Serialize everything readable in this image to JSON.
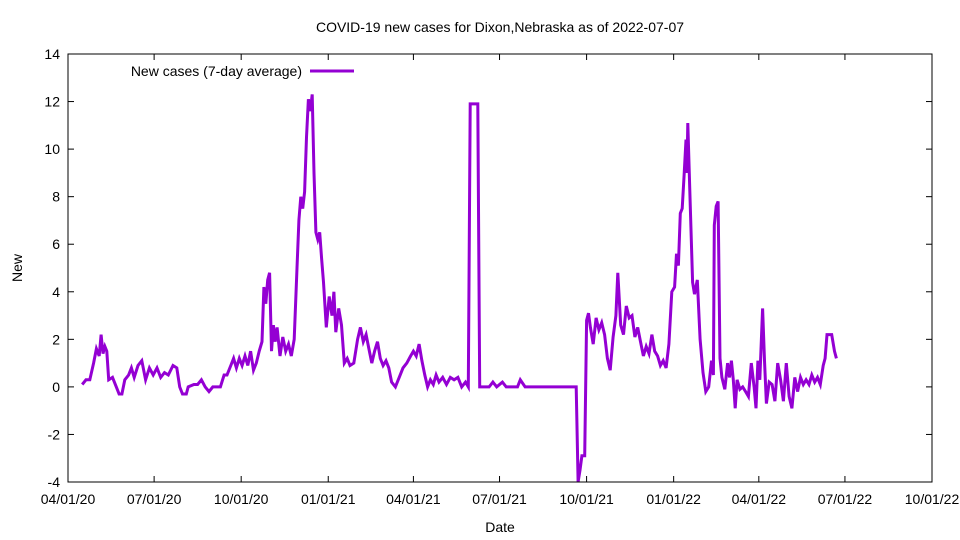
{
  "chart_data": {
    "type": "line",
    "title": "COVID-19 new cases for Dixon,Nebraska as of 2022-07-07",
    "xlabel": "Date",
    "ylabel": "New",
    "ylim": [
      -4,
      14
    ],
    "xlim": [
      "2020-04-01",
      "2022-10-01"
    ],
    "yticks": [
      -4,
      -2,
      0,
      2,
      4,
      6,
      8,
      10,
      12,
      14
    ],
    "xticks": [
      "04/01/20",
      "07/01/20",
      "10/01/20",
      "01/01/21",
      "04/01/21",
      "07/01/21",
      "10/01/21",
      "01/01/22",
      "04/01/22",
      "07/01/22",
      "10/01/22"
    ],
    "grid": false,
    "legend_position": "top-left",
    "series": [
      {
        "name": "New cases (7-day average)",
        "color": "#9400d3",
        "points": [
          [
            "2020-04-16",
            0.1
          ],
          [
            "2020-04-20",
            0.3
          ],
          [
            "2020-04-24",
            0.3
          ],
          [
            "2020-04-28",
            1.0
          ],
          [
            "2020-05-01",
            1.6
          ],
          [
            "2020-05-04",
            1.3
          ],
          [
            "2020-05-06",
            2.2
          ],
          [
            "2020-05-08",
            1.4
          ],
          [
            "2020-05-10",
            1.7
          ],
          [
            "2020-05-12",
            1.5
          ],
          [
            "2020-05-14",
            0.3
          ],
          [
            "2020-05-18",
            0.4
          ],
          [
            "2020-05-22",
            0.0
          ],
          [
            "2020-05-25",
            -0.3
          ],
          [
            "2020-05-28",
            -0.3
          ],
          [
            "2020-05-31",
            0.3
          ],
          [
            "2020-06-04",
            0.5
          ],
          [
            "2020-06-07",
            0.8
          ],
          [
            "2020-06-10",
            0.4
          ],
          [
            "2020-06-14",
            0.9
          ],
          [
            "2020-06-18",
            1.1
          ],
          [
            "2020-06-22",
            0.3
          ],
          [
            "2020-06-26",
            0.8
          ],
          [
            "2020-06-30",
            0.5
          ],
          [
            "2020-07-04",
            0.8
          ],
          [
            "2020-07-08",
            0.4
          ],
          [
            "2020-07-12",
            0.6
          ],
          [
            "2020-07-16",
            0.5
          ],
          [
            "2020-07-21",
            0.9
          ],
          [
            "2020-07-25",
            0.8
          ],
          [
            "2020-07-28",
            0.0
          ],
          [
            "2020-07-31",
            -0.3
          ],
          [
            "2020-08-04",
            -0.3
          ],
          [
            "2020-08-06",
            0.0
          ],
          [
            "2020-08-12",
            0.1
          ],
          [
            "2020-08-16",
            0.1
          ],
          [
            "2020-08-20",
            0.3
          ],
          [
            "2020-08-24",
            0.0
          ],
          [
            "2020-08-28",
            -0.2
          ],
          [
            "2020-09-01",
            0.0
          ],
          [
            "2020-09-05",
            0.0
          ],
          [
            "2020-09-09",
            0.0
          ],
          [
            "2020-09-13",
            0.5
          ],
          [
            "2020-09-16",
            0.5
          ],
          [
            "2020-09-20",
            0.9
          ],
          [
            "2020-09-23",
            1.2
          ],
          [
            "2020-09-26",
            0.8
          ],
          [
            "2020-09-29",
            1.2
          ],
          [
            "2020-10-02",
            0.9
          ],
          [
            "2020-10-05",
            1.3
          ],
          [
            "2020-10-08",
            0.9
          ],
          [
            "2020-10-11",
            1.5
          ],
          [
            "2020-10-14",
            0.7
          ],
          [
            "2020-10-17",
            1.0
          ],
          [
            "2020-10-20",
            1.5
          ],
          [
            "2020-10-23",
            1.9
          ],
          [
            "2020-10-25",
            4.2
          ],
          [
            "2020-10-27",
            3.5
          ],
          [
            "2020-10-29",
            4.5
          ],
          [
            "2020-10-31",
            4.8
          ],
          [
            "2020-11-02",
            1.5
          ],
          [
            "2020-11-04",
            2.6
          ],
          [
            "2020-11-06",
            1.9
          ],
          [
            "2020-11-08",
            2.5
          ],
          [
            "2020-11-11",
            1.3
          ],
          [
            "2020-11-14",
            2.1
          ],
          [
            "2020-11-17",
            1.5
          ],
          [
            "2020-11-20",
            1.8
          ],
          [
            "2020-11-23",
            1.3
          ],
          [
            "2020-11-26",
            2.0
          ],
          [
            "2020-11-29",
            5.0
          ],
          [
            "2020-12-01",
            7.0
          ],
          [
            "2020-12-03",
            8.0
          ],
          [
            "2020-12-05",
            7.5
          ],
          [
            "2020-12-07",
            8.2
          ],
          [
            "2020-12-09",
            10.5
          ],
          [
            "2020-12-11",
            12.1
          ],
          [
            "2020-12-13",
            11.6
          ],
          [
            "2020-12-15",
            12.3
          ],
          [
            "2020-12-17",
            9.0
          ],
          [
            "2020-12-19",
            6.5
          ],
          [
            "2020-12-21",
            6.2
          ],
          [
            "2020-12-23",
            6.5
          ],
          [
            "2020-12-25",
            5.4
          ],
          [
            "2020-12-27",
            4.4
          ],
          [
            "2020-12-30",
            2.5
          ],
          [
            "2021-01-02",
            3.8
          ],
          [
            "2021-01-05",
            3.0
          ],
          [
            "2021-01-07",
            4.0
          ],
          [
            "2021-01-09",
            2.3
          ],
          [
            "2021-01-12",
            3.3
          ],
          [
            "2021-01-15",
            2.6
          ],
          [
            "2021-01-18",
            1.0
          ],
          [
            "2021-01-21",
            1.2
          ],
          [
            "2021-01-24",
            0.9
          ],
          [
            "2021-01-28",
            1.0
          ],
          [
            "2021-02-01",
            2.0
          ],
          [
            "2021-02-04",
            2.5
          ],
          [
            "2021-02-07",
            1.9
          ],
          [
            "2021-02-10",
            2.2
          ],
          [
            "2021-02-13",
            1.6
          ],
          [
            "2021-02-16",
            1.0
          ],
          [
            "2021-02-19",
            1.5
          ],
          [
            "2021-02-22",
            1.9
          ],
          [
            "2021-02-25",
            1.2
          ],
          [
            "2021-02-28",
            0.9
          ],
          [
            "2021-03-03",
            1.1
          ],
          [
            "2021-03-06",
            0.8
          ],
          [
            "2021-03-09",
            0.2
          ],
          [
            "2021-03-13",
            0.0
          ],
          [
            "2021-03-17",
            0.4
          ],
          [
            "2021-03-21",
            0.8
          ],
          [
            "2021-03-25",
            1.0
          ],
          [
            "2021-03-29",
            1.3
          ],
          [
            "2021-04-01",
            1.5
          ],
          [
            "2021-04-04",
            1.3
          ],
          [
            "2021-04-07",
            1.8
          ],
          [
            "2021-04-10",
            1.1
          ],
          [
            "2021-04-13",
            0.5
          ],
          [
            "2021-04-16",
            0.0
          ],
          [
            "2021-04-19",
            0.3
          ],
          [
            "2021-04-22",
            0.1
          ],
          [
            "2021-04-25",
            0.5
          ],
          [
            "2021-04-28",
            0.2
          ],
          [
            "2021-05-02",
            0.4
          ],
          [
            "2021-05-06",
            0.1
          ],
          [
            "2021-05-10",
            0.4
          ],
          [
            "2021-05-14",
            0.3
          ],
          [
            "2021-05-18",
            0.4
          ],
          [
            "2021-05-22",
            0.0
          ],
          [
            "2021-05-26",
            0.2
          ],
          [
            "2021-05-29",
            0.0
          ],
          [
            "2021-05-31",
            11.9
          ],
          [
            "2021-06-08",
            11.9
          ],
          [
            "2021-06-10",
            0.0
          ],
          [
            "2021-06-20",
            0.0
          ],
          [
            "2021-06-24",
            0.2
          ],
          [
            "2021-06-28",
            0.0
          ],
          [
            "2021-07-04",
            0.2
          ],
          [
            "2021-07-08",
            0.0
          ],
          [
            "2021-07-20",
            0.0
          ],
          [
            "2021-07-23",
            0.3
          ],
          [
            "2021-07-28",
            0.0
          ],
          [
            "2021-09-20",
            0.0
          ],
          [
            "2021-09-22",
            -4.0
          ],
          [
            "2021-09-24",
            -3.5
          ],
          [
            "2021-09-26",
            -2.9
          ],
          [
            "2021-09-29",
            -2.9
          ],
          [
            "2021-10-01",
            2.8
          ],
          [
            "2021-10-03",
            3.1
          ],
          [
            "2021-10-05",
            2.5
          ],
          [
            "2021-10-08",
            1.8
          ],
          [
            "2021-10-11",
            2.9
          ],
          [
            "2021-10-14",
            2.4
          ],
          [
            "2021-10-17",
            2.7
          ],
          [
            "2021-10-20",
            2.2
          ],
          [
            "2021-10-23",
            1.2
          ],
          [
            "2021-10-26",
            0.7
          ],
          [
            "2021-10-29",
            2.1
          ],
          [
            "2021-11-01",
            3.0
          ],
          [
            "2021-11-03",
            4.8
          ],
          [
            "2021-11-06",
            2.6
          ],
          [
            "2021-11-09",
            2.2
          ],
          [
            "2021-11-12",
            3.4
          ],
          [
            "2021-11-15",
            2.9
          ],
          [
            "2021-11-18",
            3.0
          ],
          [
            "2021-11-21",
            2.1
          ],
          [
            "2021-11-24",
            2.5
          ],
          [
            "2021-11-27",
            1.9
          ],
          [
            "2021-11-30",
            1.3
          ],
          [
            "2021-12-03",
            1.7
          ],
          [
            "2021-12-06",
            1.4
          ],
          [
            "2021-12-09",
            2.2
          ],
          [
            "2021-12-12",
            1.5
          ],
          [
            "2021-12-15",
            1.3
          ],
          [
            "2021-12-18",
            0.9
          ],
          [
            "2021-12-21",
            1.1
          ],
          [
            "2021-12-24",
            0.8
          ],
          [
            "2021-12-27",
            1.8
          ],
          [
            "2021-12-30",
            4.0
          ],
          [
            "2022-01-02",
            4.2
          ],
          [
            "2022-01-04",
            5.6
          ],
          [
            "2022-01-06",
            5.1
          ],
          [
            "2022-01-08",
            7.3
          ],
          [
            "2022-01-10",
            7.5
          ],
          [
            "2022-01-12",
            8.9
          ],
          [
            "2022-01-14",
            10.4
          ],
          [
            "2022-01-15",
            9.0
          ],
          [
            "2022-01-16",
            11.1
          ],
          [
            "2022-01-18",
            8.4
          ],
          [
            "2022-01-21",
            4.4
          ],
          [
            "2022-01-23",
            3.9
          ],
          [
            "2022-01-26",
            4.5
          ],
          [
            "2022-01-29",
            2.0
          ],
          [
            "2022-02-01",
            0.6
          ],
          [
            "2022-02-04",
            -0.2
          ],
          [
            "2022-02-07",
            0.0
          ],
          [
            "2022-02-10",
            1.1
          ],
          [
            "2022-02-12",
            0.5
          ],
          [
            "2022-02-13",
            6.8
          ],
          [
            "2022-02-15",
            7.6
          ],
          [
            "2022-02-17",
            7.8
          ],
          [
            "2022-02-19",
            1.2
          ],
          [
            "2022-02-21",
            0.4
          ],
          [
            "2022-02-24",
            -0.1
          ],
          [
            "2022-02-27",
            1.0
          ],
          [
            "2022-03-01",
            0.4
          ],
          [
            "2022-03-03",
            1.1
          ],
          [
            "2022-03-05",
            0.3
          ],
          [
            "2022-03-07",
            -0.9
          ],
          [
            "2022-03-09",
            0.3
          ],
          [
            "2022-03-12",
            -0.1
          ],
          [
            "2022-03-15",
            0.0
          ],
          [
            "2022-03-18",
            -0.2
          ],
          [
            "2022-03-21",
            -0.4
          ],
          [
            "2022-03-24",
            1.0
          ],
          [
            "2022-03-27",
            0.0
          ],
          [
            "2022-03-29",
            -0.9
          ],
          [
            "2022-03-31",
            1.1
          ],
          [
            "2022-04-02",
            0.3
          ],
          [
            "2022-04-05",
            3.3
          ],
          [
            "2022-04-07",
            1.1
          ],
          [
            "2022-04-09",
            -0.7
          ],
          [
            "2022-04-12",
            0.2
          ],
          [
            "2022-04-15",
            0.1
          ],
          [
            "2022-04-18",
            -0.6
          ],
          [
            "2022-04-21",
            1.0
          ],
          [
            "2022-04-24",
            0.3
          ],
          [
            "2022-04-27",
            -0.6
          ],
          [
            "2022-04-30",
            1.0
          ],
          [
            "2022-05-03",
            -0.4
          ],
          [
            "2022-05-06",
            -0.9
          ],
          [
            "2022-05-09",
            0.4
          ],
          [
            "2022-05-12",
            -0.2
          ],
          [
            "2022-05-15",
            0.4
          ],
          [
            "2022-05-18",
            0.1
          ],
          [
            "2022-05-21",
            0.3
          ],
          [
            "2022-05-24",
            0.1
          ],
          [
            "2022-05-27",
            0.5
          ],
          [
            "2022-05-30",
            0.2
          ],
          [
            "2022-06-02",
            0.4
          ],
          [
            "2022-06-05",
            0.1
          ],
          [
            "2022-06-08",
            0.9
          ],
          [
            "2022-06-10",
            1.2
          ],
          [
            "2022-06-12",
            2.2
          ],
          [
            "2022-06-17",
            2.2
          ],
          [
            "2022-06-20",
            1.5
          ],
          [
            "2022-06-22",
            1.2
          ]
        ]
      }
    ]
  }
}
